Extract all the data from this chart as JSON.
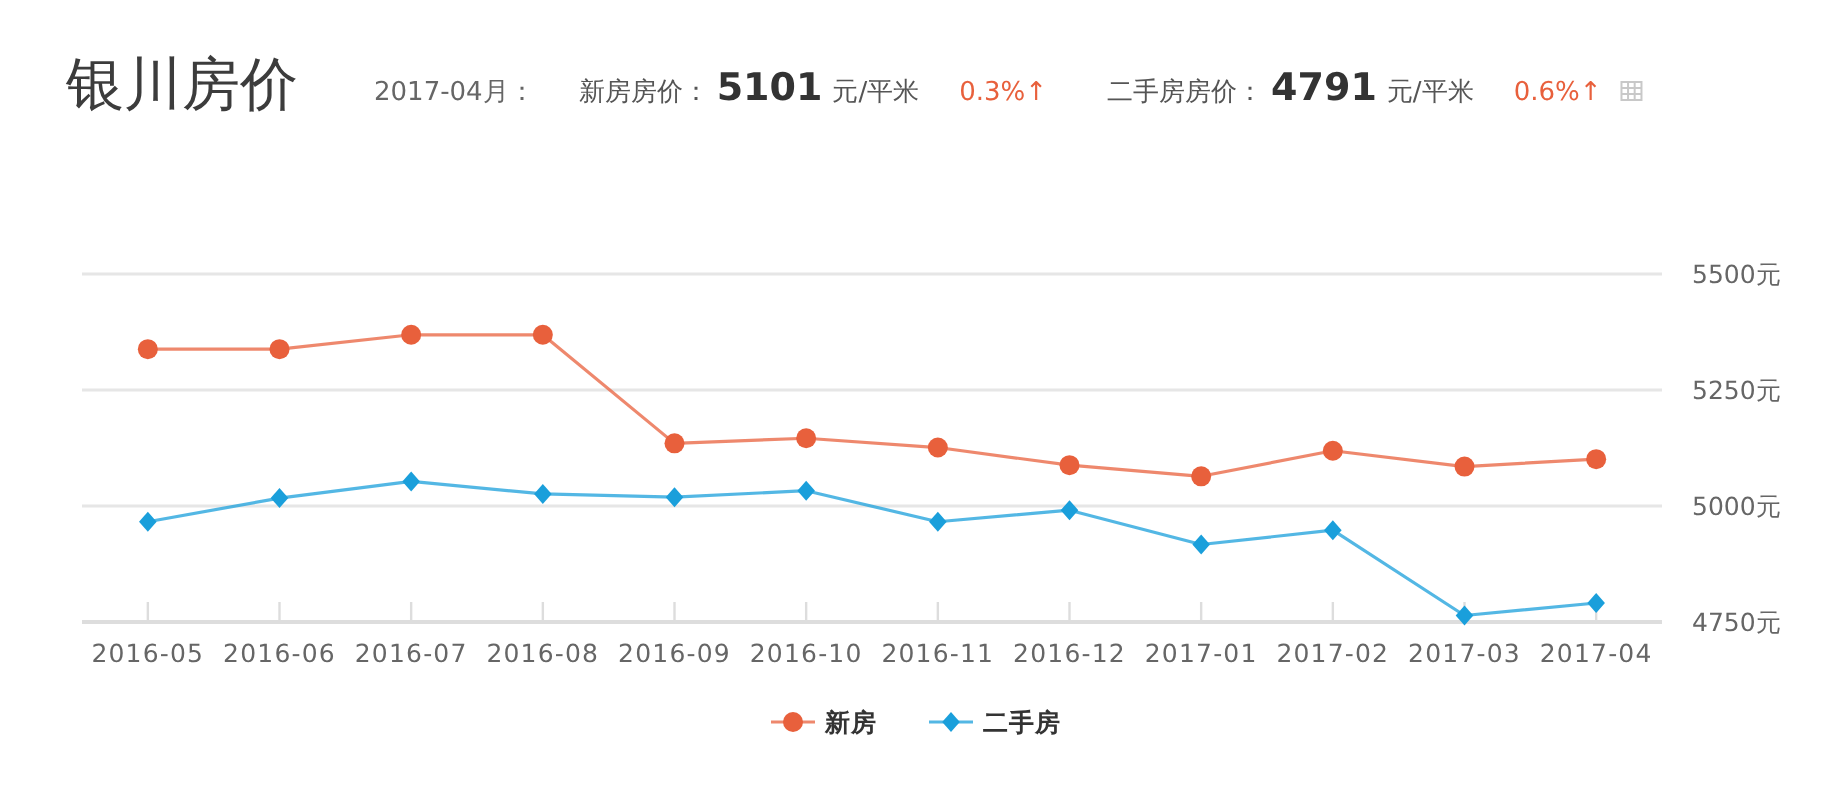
{
  "chart_data": {
    "type": "line",
    "title": "银川房价",
    "annotations": [
      "2017-04月：",
      "新房房价：",
      "5101",
      "元/平米",
      "0.3%↑",
      "二手房房价：",
      "4791",
      "元/平米",
      "0.6%↑"
    ],
    "categories": [
      "2016-05",
      "2016-06",
      "2016-07",
      "2016-08",
      "2016-09",
      "2016-10",
      "2016-11",
      "2016-12",
      "2017-01",
      "2017-02",
      "2017-03",
      "2017-04"
    ],
    "series": [
      {
        "name": "新房",
        "color": "#e8603c",
        "marker": "circle",
        "values": [
          5338,
          5338,
          5369,
          5369,
          5135,
          5146,
          5126,
          5088,
          5064,
          5119,
          5085,
          5101
        ]
      },
      {
        "name": "二手房",
        "color": "#1a9fdb",
        "marker": "diamond",
        "values": [
          4966,
          5017,
          5053,
          5026,
          5019,
          5033,
          4966,
          4991,
          4917,
          4948,
          4764,
          4791
        ]
      }
    ],
    "ylim": [
      4750,
      5500
    ],
    "yticks": [
      {
        "value": 4750,
        "label": "4750元"
      },
      {
        "value": 5000,
        "label": "5000元"
      },
      {
        "value": 5250,
        "label": "5250元"
      },
      {
        "value": 5500,
        "label": "5500元"
      }
    ],
    "grid": "y",
    "legend": "bottom",
    "line_style": "solid"
  }
}
